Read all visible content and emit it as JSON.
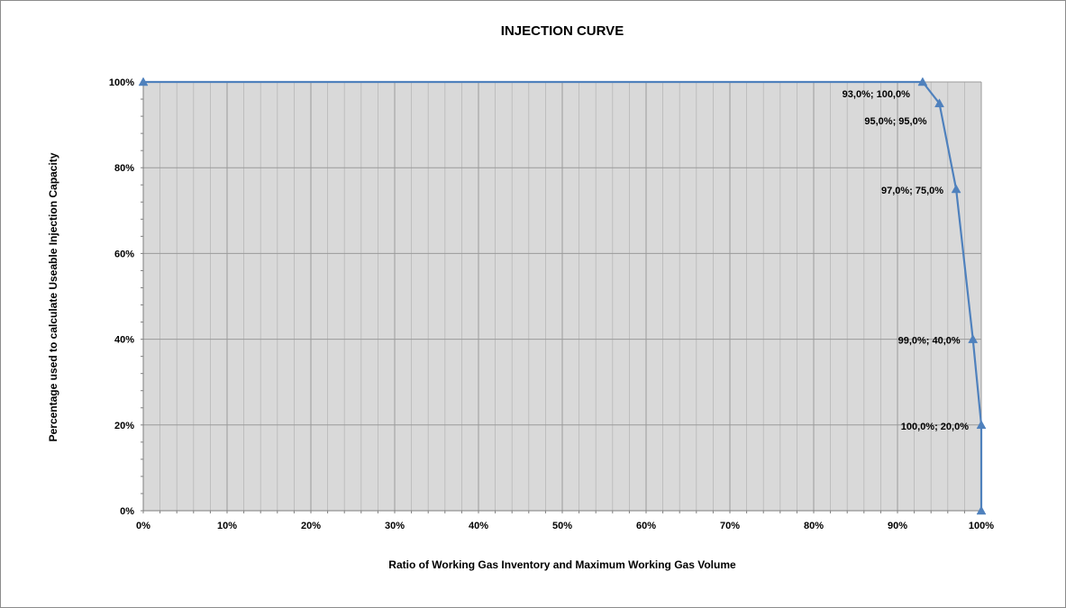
{
  "chart_data": {
    "type": "line",
    "title": "INJECTION CURVE",
    "xlabel": "Ratio of Working Gas Inventory and Maximum Working Gas Volume",
    "ylabel": "Percentage used to calculate Useable Injection Capacity",
    "xlim": [
      0,
      100
    ],
    "ylim": [
      0,
      100
    ],
    "x_ticks": [
      "0%",
      "10%",
      "20%",
      "30%",
      "40%",
      "50%",
      "60%",
      "70%",
      "80%",
      "90%",
      "100%"
    ],
    "y_ticks": [
      "0%",
      "20%",
      "40%",
      "60%",
      "80%",
      "100%"
    ],
    "grid": true,
    "plot_background": "#d9d9d9",
    "series": [
      {
        "color": "#4f81bd",
        "marker": "triangle",
        "points": [
          {
            "x": 0,
            "y": 100
          },
          {
            "x": 93,
            "y": 100
          },
          {
            "x": 95,
            "y": 95
          },
          {
            "x": 97,
            "y": 75
          },
          {
            "x": 99,
            "y": 40
          },
          {
            "x": 100,
            "y": 20
          },
          {
            "x": 100,
            "y": 0
          }
        ]
      }
    ],
    "data_labels": [
      {
        "x": 93,
        "y": 100,
        "text": "93,0%; 100,0%"
      },
      {
        "x": 95,
        "y": 95,
        "text": "95,0%; 95,0%"
      },
      {
        "x": 97,
        "y": 75,
        "text": "97,0%; 75,0%"
      },
      {
        "x": 99,
        "y": 40,
        "text": "99,0%; 40,0%"
      },
      {
        "x": 100,
        "y": 20,
        "text": "100,0%; 20,0%"
      }
    ]
  }
}
